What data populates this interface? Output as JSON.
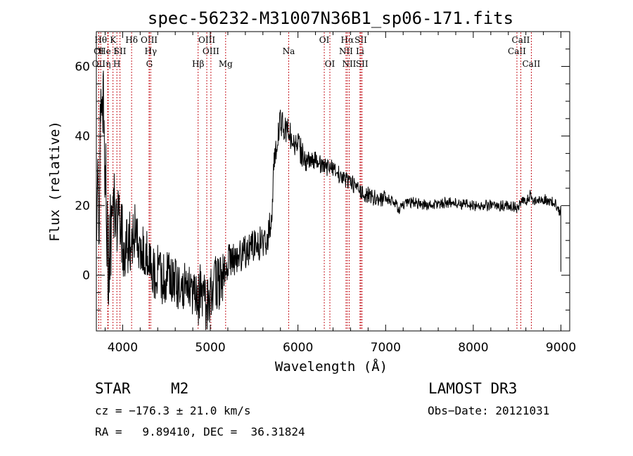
{
  "chart_data": {
    "type": "line",
    "title": "spec-56232-M31007N36B1_sp06-171.fits",
    "xlabel": "Wavelength (Å)",
    "ylabel": "Flux (relative)",
    "xlim": [
      3700,
      9100
    ],
    "ylim": [
      -16,
      70
    ],
    "xticks": [
      4000,
      5000,
      6000,
      7000,
      8000,
      9000
    ],
    "yticks": [
      0,
      20,
      40,
      60
    ],
    "grid": false,
    "series": [
      {
        "name": "spectrum",
        "anchors": [
          [
            3700,
            15
          ],
          [
            3730,
            22
          ],
          [
            3760,
            50
          ],
          [
            3790,
            40
          ],
          [
            3820,
            10
          ],
          [
            3850,
            5
          ],
          [
            3900,
            20
          ],
          [
            3950,
            15
          ],
          [
            4000,
            10
          ],
          [
            4050,
            6
          ],
          [
            4100,
            12
          ],
          [
            4150,
            10
          ],
          [
            4200,
            5
          ],
          [
            4250,
            8
          ],
          [
            4300,
            4
          ],
          [
            4350,
            0
          ],
          [
            4400,
            2
          ],
          [
            4450,
            -2
          ],
          [
            4500,
            1
          ],
          [
            4600,
            -3
          ],
          [
            4700,
            -2
          ],
          [
            4800,
            -6
          ],
          [
            4850,
            -8
          ],
          [
            4900,
            -3
          ],
          [
            4950,
            -10
          ],
          [
            5000,
            -6
          ],
          [
            5050,
            -2
          ],
          [
            5100,
            -3
          ],
          [
            5150,
            1
          ],
          [
            5200,
            4
          ],
          [
            5300,
            5
          ],
          [
            5400,
            7
          ],
          [
            5500,
            9
          ],
          [
            5600,
            9
          ],
          [
            5650,
            10
          ],
          [
            5700,
            17
          ],
          [
            5720,
            30
          ],
          [
            5750,
            37
          ],
          [
            5800,
            44
          ],
          [
            5850,
            42
          ],
          [
            5900,
            41
          ],
          [
            5950,
            38
          ],
          [
            6000,
            37
          ],
          [
            6050,
            35
          ],
          [
            6100,
            33
          ],
          [
            6200,
            33
          ],
          [
            6300,
            31
          ],
          [
            6400,
            31
          ],
          [
            6500,
            28
          ],
          [
            6600,
            27
          ],
          [
            6700,
            24
          ],
          [
            6800,
            23
          ],
          [
            6900,
            22
          ],
          [
            7000,
            22
          ],
          [
            7100,
            21
          ],
          [
            7150,
            19
          ],
          [
            7200,
            20
          ],
          [
            7300,
            21
          ],
          [
            7500,
            20
          ],
          [
            7700,
            21
          ],
          [
            8000,
            20
          ],
          [
            8300,
            20
          ],
          [
            8450,
            20
          ],
          [
            8500,
            19
          ],
          [
            8540,
            21
          ],
          [
            8600,
            21
          ],
          [
            8650,
            23
          ],
          [
            8700,
            21
          ],
          [
            8800,
            22
          ],
          [
            8900,
            21
          ],
          [
            8960,
            20
          ],
          [
            8990,
            18
          ],
          [
            9000,
            1
          ]
        ]
      }
    ],
    "line_markers": [
      {
        "wave": 3727,
        "label": "OII",
        "row": 3
      },
      {
        "wave": 3750,
        "label": "Hθ",
        "row": 1
      },
      {
        "wave": 3727,
        "label": "OI",
        "row": 2
      },
      {
        "wave": 3830,
        "label": "He I",
        "row": 2
      },
      {
        "wave": 3835,
        "label": "η",
        "row": 3
      },
      {
        "wave": 3890,
        "label": "K",
        "row": 1
      },
      {
        "wave": 3934,
        "label": "H",
        "row": 3
      },
      {
        "wave": 3970,
        "label": "SII",
        "row": 2
      },
      {
        "wave": 4102,
        "label": "Hδ",
        "row": 1
      },
      {
        "wave": 4302,
        "label": "OIII",
        "row": 1
      },
      {
        "wave": 4320,
        "label": "Hγ",
        "row": 2
      },
      {
        "wave": 4305,
        "label": "G",
        "row": 3
      },
      {
        "wave": 4861,
        "label": "Hβ",
        "row": 3
      },
      {
        "wave": 4960,
        "label": "OIII",
        "row": 1
      },
      {
        "wave": 5007,
        "label": "OIII",
        "row": 2
      },
      {
        "wave": 5175,
        "label": "Mg",
        "row": 3
      },
      {
        "wave": 5894,
        "label": "Na",
        "row": 2
      },
      {
        "wave": 6300,
        "label": "OI",
        "row": 1
      },
      {
        "wave": 6364,
        "label": "OI",
        "row": 3
      },
      {
        "wave": 6563,
        "label": "Hα",
        "row": 1
      },
      {
        "wave": 6548,
        "label": "NII",
        "row": 2
      },
      {
        "wave": 6584,
        "label": "NII",
        "row": 3
      },
      {
        "wave": 6717,
        "label": "SII",
        "row": 1
      },
      {
        "wave": 6708,
        "label": "Li",
        "row": 2
      },
      {
        "wave": 6731,
        "label": "SII",
        "row": 3
      },
      {
        "wave": 8498,
        "label": "CaII",
        "row": 2
      },
      {
        "wave": 8542,
        "label": "CaII",
        "row": 1
      },
      {
        "wave": 8662,
        "label": "CaII",
        "row": 3
      }
    ]
  },
  "info": {
    "class": "STAR",
    "subclass": "M2",
    "survey": "LAMOST DR3",
    "cz": "cz = −176.3 ± 21.0 km/s",
    "obsdate": "Obs−Date: 20121031",
    "radec": "RA =   9.89410, DEC =  36.31824"
  },
  "colors": {
    "marker": "#c0000a",
    "ink": "#000000"
  }
}
